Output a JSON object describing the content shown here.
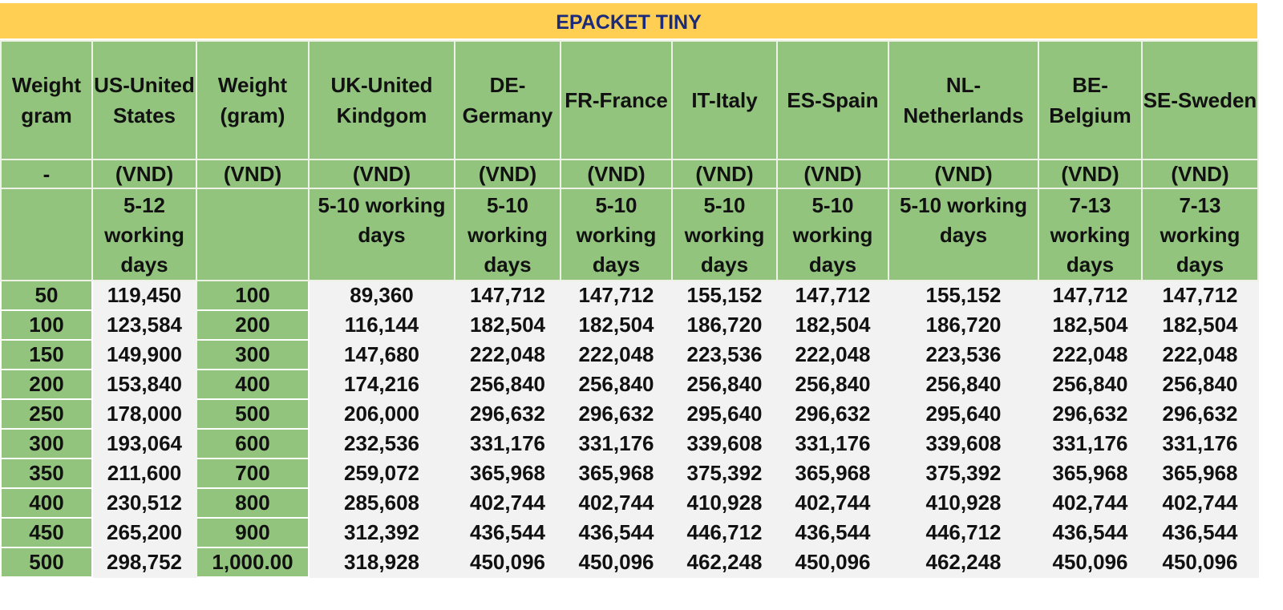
{
  "title": "EPACKET TINY",
  "colors": {
    "title_bg": "#fecf52",
    "title_text": "#1b2a7a",
    "header_bg": "#93c47d",
    "cell_bg": "#f2f2f2"
  },
  "columns": [
    {
      "header": "Weight gram",
      "currency": "-",
      "delivery": ""
    },
    {
      "header": "US-United States",
      "currency": "(VND)",
      "delivery": "5-12 working days"
    },
    {
      "header": "Weight (gram)",
      "currency": "(VND)",
      "delivery": ""
    },
    {
      "header": "UK-United Kindgom",
      "currency": "(VND)",
      "delivery": "5-10 working days"
    },
    {
      "header": "DE-Germany",
      "currency": "(VND)",
      "delivery": "5-10 working days"
    },
    {
      "header": "FR-France",
      "currency": "(VND)",
      "delivery": "5-10 working days"
    },
    {
      "header": "IT-Italy",
      "currency": "(VND)",
      "delivery": "5-10 working days"
    },
    {
      "header": "ES-Spain",
      "currency": "(VND)",
      "delivery": "5-10 working days"
    },
    {
      "header": "NL-Netherlands",
      "currency": "(VND)",
      "delivery": "5-10 working days"
    },
    {
      "header": "BE-Belgium",
      "currency": "(VND)",
      "delivery": "7-13 working days"
    },
    {
      "header": "SE-Sweden",
      "currency": "(VND)",
      "delivery": "7-13 working days"
    }
  ],
  "rows": [
    [
      "50",
      "119,450",
      "100",
      "89,360",
      "147,712",
      "147,712",
      "155,152",
      "147,712",
      "155,152",
      "147,712",
      "147,712"
    ],
    [
      "100",
      "123,584",
      "200",
      "116,144",
      "182,504",
      "182,504",
      "186,720",
      "182,504",
      "186,720",
      "182,504",
      "182,504"
    ],
    [
      "150",
      "149,900",
      "300",
      "147,680",
      "222,048",
      "222,048",
      "223,536",
      "222,048",
      "223,536",
      "222,048",
      "222,048"
    ],
    [
      "200",
      "153,840",
      "400",
      "174,216",
      "256,840",
      "256,840",
      "256,840",
      "256,840",
      "256,840",
      "256,840",
      "256,840"
    ],
    [
      "250",
      "178,000",
      "500",
      "206,000",
      "296,632",
      "296,632",
      "295,640",
      "296,632",
      "295,640",
      "296,632",
      "296,632"
    ],
    [
      "300",
      "193,064",
      "600",
      "232,536",
      "331,176",
      "331,176",
      "339,608",
      "331,176",
      "339,608",
      "331,176",
      "331,176"
    ],
    [
      "350",
      "211,600",
      "700",
      "259,072",
      "365,968",
      "365,968",
      "375,392",
      "365,968",
      "375,392",
      "365,968",
      "365,968"
    ],
    [
      "400",
      "230,512",
      "800",
      "285,608",
      "402,744",
      "402,744",
      "410,928",
      "402,744",
      "410,928",
      "402,744",
      "402,744"
    ],
    [
      "450",
      "265,200",
      "900",
      "312,392",
      "436,544",
      "436,544",
      "446,712",
      "436,544",
      "446,712",
      "436,544",
      "436,544"
    ],
    [
      "500",
      "298,752",
      "1,000.00",
      "318,928",
      "450,096",
      "450,096",
      "462,248",
      "450,096",
      "462,248",
      "450,096",
      "450,096"
    ]
  ]
}
